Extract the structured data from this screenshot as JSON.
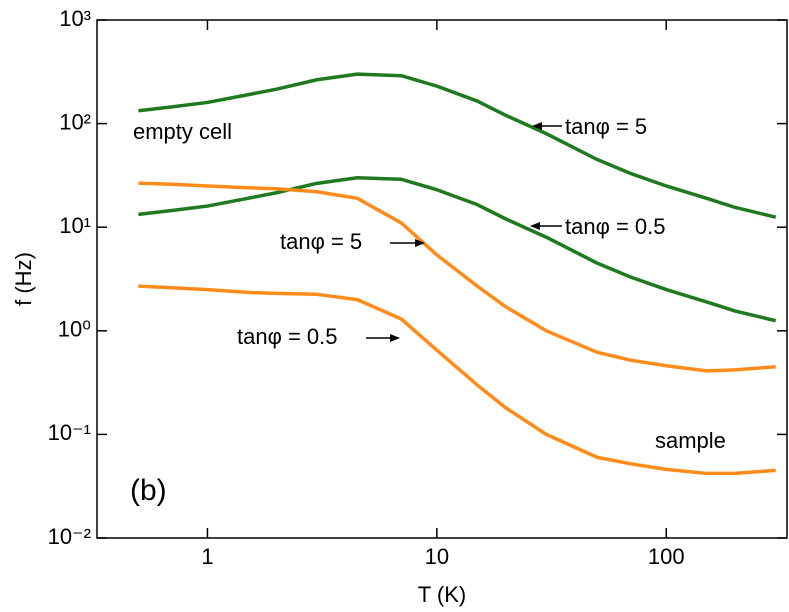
{
  "chart_data": {
    "type": "line",
    "x_label": "T (K)",
    "y_label": "f (Hz)",
    "x_log": true,
    "y_log": true,
    "xlim": [
      0.33,
      336
    ],
    "ylim": [
      0.01,
      1000
    ],
    "xticks": [
      1,
      10,
      100
    ],
    "yticks": [
      {
        "value": 0.01,
        "label": "10⁻²"
      },
      {
        "value": 0.1,
        "label": "10⁻¹"
      },
      {
        "value": 1,
        "label": "10⁰"
      },
      {
        "value": 10,
        "label": "10¹"
      },
      {
        "value": 100,
        "label": "10²"
      },
      {
        "value": 1000,
        "label": "10³"
      }
    ],
    "x": [
      0.5,
      0.7,
      1,
      1.5,
      2,
      3,
      4.5,
      7,
      10,
      15,
      20,
      30,
      50,
      70,
      100,
      150,
      200,
      300
    ],
    "series": [
      {
        "color": "#1f7a1f",
        "values": [
          133,
          145,
          160,
          190,
          215,
          265,
          300,
          290,
          230,
          165,
          120,
          80,
          45,
          33,
          25,
          19,
          15.5,
          12.5
        ]
      },
      {
        "color": "#1f7a1f",
        "values": [
          13.3,
          14.5,
          16,
          19,
          21.5,
          26.5,
          30,
          29,
          23,
          16.5,
          12,
          8,
          4.5,
          3.3,
          2.5,
          1.9,
          1.55,
          1.25
        ]
      },
      {
        "color": "#ff8c1a",
        "values": [
          26.6,
          26,
          25,
          24,
          23.5,
          22,
          19,
          11,
          5.4,
          2.7,
          1.7,
          1.0,
          0.62,
          0.52,
          0.46,
          0.41,
          0.42,
          0.45
        ]
      },
      {
        "color": "#ff8c1a",
        "values": [
          2.7,
          2.6,
          2.5,
          2.35,
          2.3,
          2.25,
          2.0,
          1.3,
          0.65,
          0.3,
          0.18,
          0.1,
          0.06,
          0.052,
          0.046,
          0.042,
          0.042,
          0.045
        ]
      }
    ],
    "annotations": [
      "empty cell",
      "sample",
      "(b)",
      "tanφ = 5",
      "tanφ = 0.5",
      "tanφ = 5",
      "tanφ = 0.5"
    ]
  }
}
